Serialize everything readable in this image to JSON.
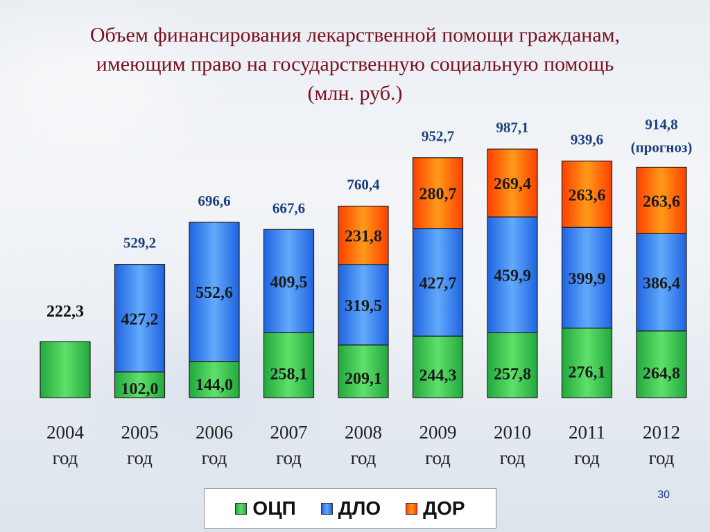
{
  "slide": {
    "title_lines": [
      "Объем финансирования лекарственной помощи гражданам,",
      "имеющим право на государственную социальную помощь",
      "(млн. руб.)"
    ],
    "page_number": "30"
  },
  "colors": {
    "ocp": "#22a83e",
    "ocp_light": "#5fe06a",
    "dlo": "#1f63e0",
    "dlo_light": "#62aafc",
    "dor": "#ff4000",
    "dor_light": "#ff9a1a",
    "total_label": "#1a3f80",
    "title": "#7a1020"
  },
  "chart_data": {
    "type": "bar",
    "stacked": true,
    "categories": [
      [
        "2004",
        "год"
      ],
      [
        "2005",
        "год"
      ],
      [
        "2006",
        "год"
      ],
      [
        "2007",
        "год"
      ],
      [
        "2008",
        "год"
      ],
      [
        "2009",
        "год"
      ],
      [
        "2010",
        "год"
      ],
      [
        "2011",
        "год"
      ],
      [
        "2012",
        "год"
      ]
    ],
    "series": [
      {
        "name": "ОЦП",
        "key": "ocp",
        "values": [
          222.3,
          102.0,
          144.0,
          258.1,
          209.1,
          244.3,
          257.8,
          276.1,
          264.8
        ],
        "labels": [
          null,
          "102,0",
          "144,0",
          "258,1",
          "209,1",
          "244,3",
          "257,8",
          "276,1",
          "264,8"
        ]
      },
      {
        "name": "ДЛО",
        "key": "dlo",
        "values": [
          0,
          427.2,
          552.6,
          409.5,
          319.5,
          427.7,
          459.9,
          399.9,
          386.4
        ],
        "labels": [
          null,
          "427,2",
          "552,6",
          "409,5",
          "319,5",
          "427,7",
          "459,9",
          "399,9",
          "386,4"
        ]
      },
      {
        "name": "ДОР",
        "key": "dor",
        "values": [
          0,
          0,
          0,
          0,
          231.8,
          280.7,
          269.4,
          263.6,
          263.6
        ],
        "labels": [
          null,
          null,
          null,
          null,
          "231,8",
          "280,7",
          "269,4",
          "263,6",
          "263,6"
        ]
      }
    ],
    "totals": [
      "222,3",
      "529,2",
      "696,6",
      "667,6",
      "760,4",
      "952,7",
      "987,1",
      "939,6",
      "914,8"
    ],
    "total_notes": [
      "",
      "",
      "",
      "",
      "",
      "",
      "",
      "",
      "(прогноз)"
    ],
    "legend": [
      "ОЦП",
      "ДЛО",
      "ДОР"
    ],
    "legend_position": "bottom",
    "grid": false,
    "xlabel": "",
    "ylabel": "",
    "ylim": [
      0,
      1000
    ]
  }
}
